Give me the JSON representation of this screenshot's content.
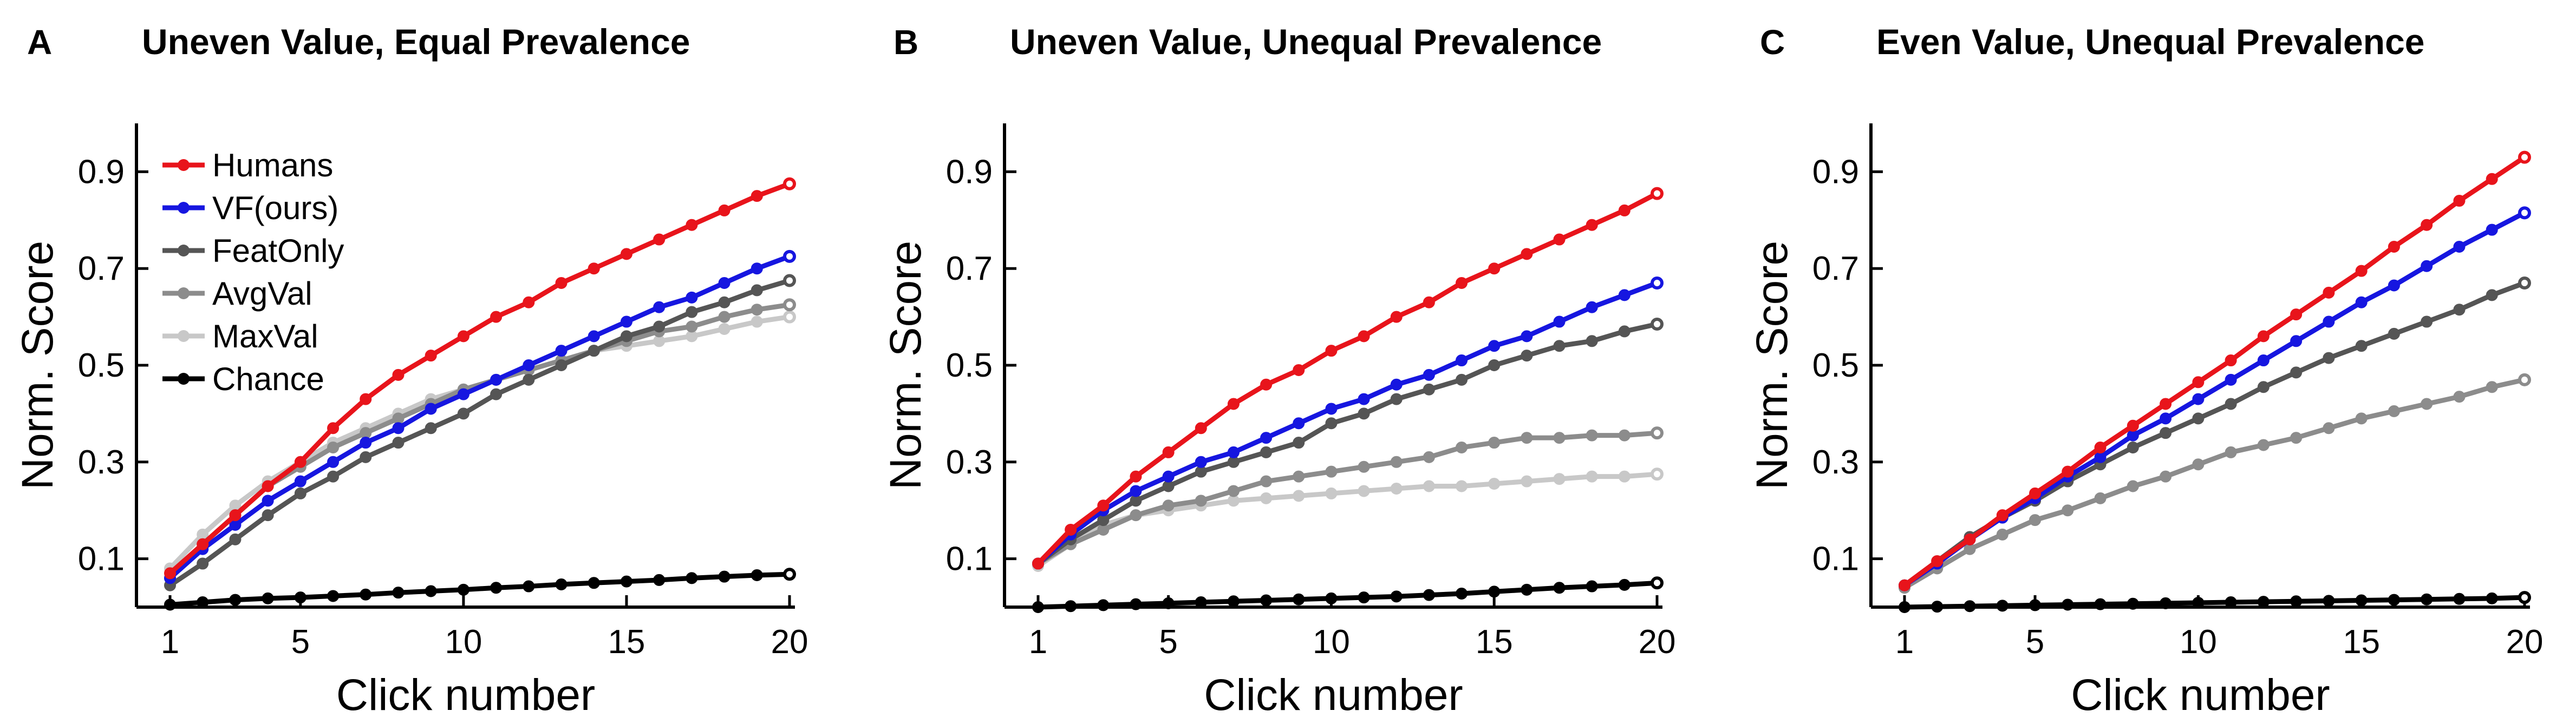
{
  "figure": {
    "colors": {
      "Humans": "#e8141b",
      "VF(ours)": "#1616e0",
      "FeatOnly": "#555555",
      "AvgVal": "#8c8c8c",
      "MaxVal": "#c8c8c8",
      "Chance": "#000000"
    }
  },
  "chart_data": [
    {
      "type": "line",
      "panel_label": "A",
      "title": "Uneven Value, Equal Prevalence",
      "xlabel": "Click number",
      "ylabel": "Norm. Score",
      "xlim": [
        1,
        20
      ],
      "ylim": [
        0,
        1.0
      ],
      "xticks": [
        1,
        5,
        10,
        15,
        20
      ],
      "yticks": [
        0.1,
        0.3,
        0.5,
        0.7,
        0.9
      ],
      "ytick_labels": [
        "0.1",
        "0.3",
        "0.5",
        "0.7",
        "0.9"
      ],
      "grid": false,
      "legend_position": "top-left",
      "x": [
        1,
        2,
        3,
        4,
        5,
        6,
        7,
        8,
        9,
        10,
        11,
        12,
        13,
        14,
        15,
        16,
        17,
        18,
        19,
        20
      ],
      "series": [
        {
          "name": "Humans",
          "values": [
            0.07,
            0.13,
            0.19,
            0.25,
            0.3,
            0.37,
            0.43,
            0.48,
            0.52,
            0.56,
            0.6,
            0.63,
            0.67,
            0.7,
            0.73,
            0.76,
            0.79,
            0.82,
            0.85,
            0.875
          ]
        },
        {
          "name": "VF(ours)",
          "values": [
            0.06,
            0.12,
            0.17,
            0.22,
            0.26,
            0.3,
            0.34,
            0.37,
            0.41,
            0.44,
            0.47,
            0.5,
            0.53,
            0.56,
            0.59,
            0.62,
            0.64,
            0.67,
            0.7,
            0.725
          ]
        },
        {
          "name": "FeatOnly",
          "values": [
            0.045,
            0.09,
            0.14,
            0.19,
            0.235,
            0.27,
            0.31,
            0.34,
            0.37,
            0.4,
            0.44,
            0.47,
            0.5,
            0.53,
            0.56,
            0.58,
            0.61,
            0.63,
            0.655,
            0.675
          ]
        },
        {
          "name": "AvgVal",
          "values": [
            0.06,
            0.13,
            0.19,
            0.25,
            0.29,
            0.33,
            0.36,
            0.39,
            0.42,
            0.45,
            0.47,
            0.49,
            0.51,
            0.53,
            0.55,
            0.57,
            0.58,
            0.6,
            0.615,
            0.625
          ]
        },
        {
          "name": "MaxVal",
          "values": [
            0.08,
            0.15,
            0.21,
            0.26,
            0.3,
            0.34,
            0.37,
            0.4,
            0.43,
            0.45,
            0.47,
            0.49,
            0.51,
            0.53,
            0.54,
            0.55,
            0.56,
            0.575,
            0.59,
            0.6
          ]
        },
        {
          "name": "Chance",
          "values": [
            0.005,
            0.01,
            0.015,
            0.018,
            0.02,
            0.023,
            0.026,
            0.03,
            0.033,
            0.036,
            0.04,
            0.043,
            0.047,
            0.05,
            0.053,
            0.056,
            0.06,
            0.063,
            0.066,
            0.068
          ]
        }
      ]
    },
    {
      "type": "line",
      "panel_label": "B",
      "title": "Uneven Value, Unequal Prevalence",
      "xlabel": "Click number",
      "ylabel": "Norm. Score",
      "xlim": [
        1,
        20
      ],
      "ylim": [
        0,
        1.0
      ],
      "xticks": [
        1,
        5,
        10,
        15,
        20
      ],
      "yticks": [
        0.1,
        0.3,
        0.5,
        0.7,
        0.9
      ],
      "ytick_labels": [
        "0.1",
        "0.3",
        "0.5",
        "0.7",
        "0.9"
      ],
      "grid": false,
      "x": [
        1,
        2,
        3,
        4,
        5,
        6,
        7,
        8,
        9,
        10,
        11,
        12,
        13,
        14,
        15,
        16,
        17,
        18,
        19,
        20
      ],
      "series": [
        {
          "name": "Humans",
          "values": [
            0.09,
            0.16,
            0.21,
            0.27,
            0.32,
            0.37,
            0.42,
            0.46,
            0.49,
            0.53,
            0.56,
            0.6,
            0.63,
            0.67,
            0.7,
            0.73,
            0.76,
            0.79,
            0.82,
            0.855
          ]
        },
        {
          "name": "VF(ours)",
          "values": [
            0.09,
            0.15,
            0.2,
            0.24,
            0.27,
            0.3,
            0.32,
            0.35,
            0.38,
            0.41,
            0.43,
            0.46,
            0.48,
            0.51,
            0.54,
            0.56,
            0.59,
            0.62,
            0.645,
            0.67
          ]
        },
        {
          "name": "FeatOnly",
          "values": [
            0.09,
            0.14,
            0.18,
            0.22,
            0.25,
            0.28,
            0.3,
            0.32,
            0.34,
            0.38,
            0.4,
            0.43,
            0.45,
            0.47,
            0.5,
            0.52,
            0.54,
            0.55,
            0.57,
            0.585
          ]
        },
        {
          "name": "AvgVal",
          "values": [
            0.09,
            0.13,
            0.16,
            0.19,
            0.21,
            0.22,
            0.24,
            0.26,
            0.27,
            0.28,
            0.29,
            0.3,
            0.31,
            0.33,
            0.34,
            0.35,
            0.35,
            0.355,
            0.355,
            0.36
          ]
        },
        {
          "name": "MaxVal",
          "values": [
            0.085,
            0.13,
            0.17,
            0.19,
            0.2,
            0.21,
            0.22,
            0.225,
            0.23,
            0.235,
            0.24,
            0.245,
            0.25,
            0.25,
            0.255,
            0.26,
            0.265,
            0.27,
            0.27,
            0.275
          ]
        },
        {
          "name": "Chance",
          "values": [
            0.0,
            0.002,
            0.004,
            0.006,
            0.008,
            0.01,
            0.012,
            0.014,
            0.016,
            0.018,
            0.02,
            0.022,
            0.025,
            0.028,
            0.032,
            0.036,
            0.04,
            0.043,
            0.046,
            0.05
          ]
        }
      ]
    },
    {
      "type": "line",
      "panel_label": "C",
      "title": "Even Value, Unequal Prevalence",
      "xlabel": "Click number",
      "ylabel": "Norm. Score",
      "xlim": [
        1,
        20
      ],
      "ylim": [
        0,
        1.0
      ],
      "xticks": [
        1,
        5,
        10,
        15,
        20
      ],
      "yticks": [
        0.1,
        0.3,
        0.5,
        0.7,
        0.9
      ],
      "ytick_labels": [
        "0.1",
        "0.3",
        "0.5",
        "0.7",
        "0.9"
      ],
      "grid": false,
      "x": [
        1,
        2,
        3,
        4,
        5,
        6,
        7,
        8,
        9,
        10,
        11,
        12,
        13,
        14,
        15,
        16,
        17,
        18,
        19,
        20
      ],
      "series": [
        {
          "name": "Humans",
          "values": [
            0.045,
            0.095,
            0.14,
            0.19,
            0.235,
            0.28,
            0.33,
            0.375,
            0.42,
            0.465,
            0.51,
            0.56,
            0.605,
            0.65,
            0.695,
            0.745,
            0.79,
            0.84,
            0.885,
            0.93
          ]
        },
        {
          "name": "VF(ours)",
          "values": [
            0.045,
            0.09,
            0.14,
            0.185,
            0.225,
            0.27,
            0.31,
            0.355,
            0.39,
            0.43,
            0.47,
            0.51,
            0.55,
            0.59,
            0.63,
            0.665,
            0.705,
            0.745,
            0.78,
            0.815
          ]
        },
        {
          "name": "FeatOnly",
          "values": [
            0.045,
            0.095,
            0.145,
            0.185,
            0.22,
            0.26,
            0.295,
            0.33,
            0.36,
            0.39,
            0.42,
            0.455,
            0.485,
            0.515,
            0.54,
            0.565,
            0.59,
            0.615,
            0.645,
            0.67
          ]
        },
        {
          "name": "AvgVal",
          "values": [
            0.04,
            0.08,
            0.12,
            0.15,
            0.18,
            0.2,
            0.225,
            0.25,
            0.27,
            0.295,
            0.32,
            0.335,
            0.35,
            0.37,
            0.39,
            0.405,
            0.42,
            0.435,
            0.455,
            0.47
          ]
        },
        {
          "name": "Chance",
          "values": [
            0.0,
            0.001,
            0.002,
            0.003,
            0.004,
            0.005,
            0.006,
            0.007,
            0.008,
            0.009,
            0.01,
            0.011,
            0.012,
            0.013,
            0.014,
            0.015,
            0.016,
            0.017,
            0.018,
            0.02
          ]
        }
      ]
    }
  ]
}
